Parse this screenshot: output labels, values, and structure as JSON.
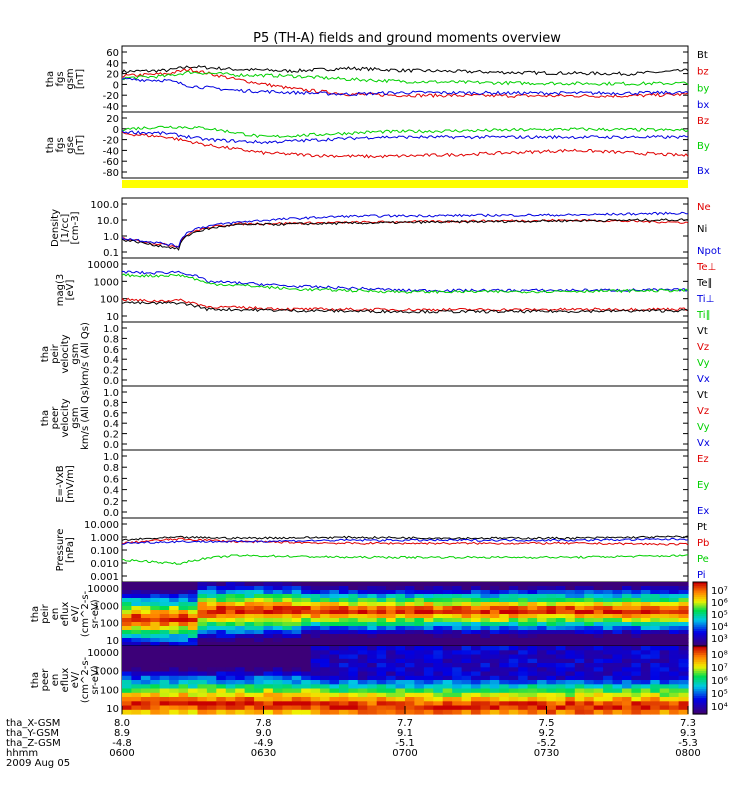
{
  "title": "P5 (TH-A) fields and ground moments overview",
  "colors": {
    "black": "#000000",
    "red": "#e00000",
    "green": "#00d000",
    "blue": "#0000e0",
    "yellow": "#ffff00"
  },
  "chart_data": [
    {
      "type": "line",
      "panel": "fgs_gsm",
      "ylabel": [
        "tha",
        "fgs",
        "gsm",
        "[nT]"
      ],
      "yticks": [
        "60",
        "40",
        "20",
        "0",
        "-20",
        "-40"
      ],
      "ylim": [
        -40,
        65
      ],
      "legend": [
        {
          "label": "Bt",
          "color": "black"
        },
        {
          "label": "bz",
          "color": "red"
        },
        {
          "label": "by",
          "color": "green"
        },
        {
          "label": "bx",
          "color": "blue"
        }
      ],
      "series": [
        {
          "name": "Bt",
          "color": "black",
          "x": [
            0,
            0.08,
            0.12,
            0.2,
            0.3,
            0.4,
            0.5,
            0.7,
            0.9,
            1.0
          ],
          "y": [
            26,
            28,
            35,
            30,
            27,
            32,
            28,
            24,
            22,
            28
          ]
        },
        {
          "name": "bz",
          "color": "red",
          "x": [
            0,
            0.08,
            0.12,
            0.2,
            0.3,
            0.4,
            0.5,
            0.7,
            0.9,
            1.0
          ],
          "y": [
            18,
            22,
            30,
            12,
            -5,
            -15,
            -17,
            -18,
            -18,
            -15
          ]
        },
        {
          "name": "by",
          "color": "green",
          "x": [
            0,
            0.08,
            0.12,
            0.2,
            0.3,
            0.4,
            0.5,
            0.7,
            0.9,
            1.0
          ],
          "y": [
            14,
            18,
            25,
            20,
            18,
            12,
            8,
            5,
            4,
            5
          ]
        },
        {
          "name": "bx",
          "color": "blue",
          "x": [
            0,
            0.08,
            0.12,
            0.2,
            0.3,
            0.4,
            0.5,
            0.7,
            0.9,
            1.0
          ],
          "y": [
            12,
            10,
            0,
            -8,
            -12,
            -15,
            -12,
            -13,
            -13,
            -12
          ]
        }
      ]
    },
    {
      "type": "line",
      "panel": "fgs_gse",
      "ylabel": [
        "tha",
        "fgs",
        "gse",
        "[nT]"
      ],
      "yticks": [
        "20",
        "0",
        "-20",
        "-40",
        "-60",
        "-80"
      ],
      "ylim": [
        -85,
        25
      ],
      "legend": [
        {
          "label": "Bz",
          "color": "red"
        },
        {
          "label": "By",
          "color": "green"
        },
        {
          "label": "Bx",
          "color": "blue"
        }
      ],
      "series": [
        {
          "name": "Bz",
          "color": "red",
          "x": [
            0,
            0.08,
            0.15,
            0.25,
            0.35,
            0.45,
            0.6,
            0.8,
            1.0
          ],
          "y": [
            -8,
            -15,
            -30,
            -45,
            -50,
            -52,
            -48,
            -40,
            -50
          ]
        },
        {
          "name": "By",
          "color": "green",
          "x": [
            0,
            0.08,
            0.15,
            0.25,
            0.35,
            0.45,
            0.6,
            0.8,
            1.0
          ],
          "y": [
            0,
            5,
            2,
            -15,
            -10,
            -5,
            -3,
            0,
            -2
          ]
        },
        {
          "name": "Bx",
          "color": "blue",
          "x": [
            0,
            0.08,
            0.15,
            0.25,
            0.35,
            0.45,
            0.6,
            0.8,
            1.0
          ],
          "y": [
            -5,
            -8,
            -20,
            -25,
            -20,
            -15,
            -15,
            -15,
            -15
          ]
        }
      ]
    },
    {
      "type": "line",
      "panel": "density",
      "ylabel": [
        "Density",
        "[1/cc]",
        "[cm-3]"
      ],
      "yticks": [
        "100.0",
        "10.0",
        "1.0",
        "0.1"
      ],
      "ylog": true,
      "ylim": [
        0.1,
        200
      ],
      "legend": [
        {
          "label": "Ne",
          "color": "red"
        },
        {
          "label": "Ni",
          "color": "black"
        },
        {
          "label": "Npot",
          "color": "blue"
        }
      ],
      "series": [
        {
          "name": "Ne",
          "color": "red",
          "x": [
            0,
            0.05,
            0.1,
            0.13,
            0.2,
            0.4,
            0.6,
            0.8,
            1.0
          ],
          "y": [
            1.0,
            0.5,
            0.3,
            3,
            8,
            10,
            12,
            14,
            10
          ]
        },
        {
          "name": "Ni",
          "color": "black",
          "x": [
            0,
            0.05,
            0.1,
            0.13,
            0.2,
            0.4,
            0.6,
            0.8,
            1.0
          ],
          "y": [
            0.8,
            0.4,
            0.2,
            2.5,
            7,
            9,
            11,
            13,
            15
          ]
        },
        {
          "name": "Npot",
          "color": "blue",
          "x": [
            0,
            0.05,
            0.1,
            0.13,
            0.2,
            0.4,
            0.6,
            0.8,
            1.0
          ],
          "y": [
            1.0,
            0.6,
            0.3,
            4,
            10,
            25,
            28,
            30,
            40
          ]
        }
      ]
    },
    {
      "type": "line",
      "panel": "temperature",
      "ylabel": [
        "mag(3",
        "[eV]"
      ],
      "yticks": [
        "10000",
        "1000",
        "100",
        "10"
      ],
      "ylog": true,
      "ylim": [
        10,
        10000
      ],
      "legend": [
        {
          "label": "Te⊥",
          "color": "red"
        },
        {
          "label": "Te∥",
          "color": "black"
        },
        {
          "label": "Ti⊥",
          "color": "blue"
        },
        {
          "label": "Ti∥",
          "color": "green"
        }
      ],
      "series": [
        {
          "name": "Te⊥",
          "color": "red",
          "x": [
            0,
            0.05,
            0.1,
            0.15,
            0.3,
            0.5,
            0.7,
            1.0
          ],
          "y": [
            100,
            80,
            90,
            40,
            30,
            28,
            28,
            30
          ]
        },
        {
          "name": "Te∥",
          "color": "black",
          "x": [
            0,
            0.05,
            0.1,
            0.15,
            0.3,
            0.5,
            0.7,
            1.0
          ],
          "y": [
            70,
            60,
            65,
            30,
            25,
            22,
            22,
            25
          ]
        },
        {
          "name": "Ti⊥",
          "color": "blue",
          "x": [
            0,
            0.05,
            0.1,
            0.15,
            0.3,
            0.5,
            0.7,
            1.0
          ],
          "y": [
            3000,
            2500,
            3000,
            900,
            500,
            300,
            300,
            320
          ]
        },
        {
          "name": "Ti∥",
          "color": "green",
          "x": [
            0,
            0.05,
            0.1,
            0.15,
            0.3,
            0.5,
            0.7,
            1.0
          ],
          "y": [
            2000,
            1800,
            2000,
            700,
            350,
            250,
            260,
            300
          ]
        }
      ]
    },
    {
      "type": "line",
      "panel": "peir_velocity",
      "ylabel": [
        "tha",
        "peir",
        "velocity",
        "gsm",
        "km/s (All Qs)"
      ],
      "yticks": [
        "1.0",
        "0.8",
        "0.6",
        "0.4",
        "0.2",
        "0.0"
      ],
      "ylim": [
        0,
        1
      ],
      "legend": [
        {
          "label": "Vt",
          "color": "black"
        },
        {
          "label": "Vz",
          "color": "red"
        },
        {
          "label": "Vy",
          "color": "green"
        },
        {
          "label": "Vx",
          "color": "blue"
        }
      ],
      "series": []
    },
    {
      "type": "line",
      "panel": "peer_velocity",
      "ylabel": [
        "tha",
        "peer",
        "velocity",
        "gsm",
        "km/s (All Qs)"
      ],
      "yticks": [
        "1.0",
        "0.8",
        "0.6",
        "0.4",
        "0.2",
        "0.0"
      ],
      "ylim": [
        0,
        1
      ],
      "legend": [
        {
          "label": "Vt",
          "color": "black"
        },
        {
          "label": "Vz",
          "color": "red"
        },
        {
          "label": "Vy",
          "color": "green"
        },
        {
          "label": "Vx",
          "color": "blue"
        }
      ],
      "series": []
    },
    {
      "type": "line",
      "panel": "efield",
      "ylabel": [
        "E=-VxB",
        "[mV/m]"
      ],
      "yticks": [
        "1.0",
        "0.8",
        "0.6",
        "0.4",
        "0.2",
        "0.0"
      ],
      "ylim": [
        0,
        1
      ],
      "legend": [
        {
          "label": "Ez",
          "color": "red"
        },
        {
          "label": "Ey",
          "color": "green"
        },
        {
          "label": "Ex",
          "color": "blue"
        }
      ],
      "series": []
    },
    {
      "type": "line",
      "panel": "pressure",
      "ylabel": [
        "Pressure",
        "[nPa]"
      ],
      "yticks": [
        "10.000",
        "1.000",
        "0.100",
        "0.010",
        "0.001"
      ],
      "ylog": true,
      "ylim": [
        0.001,
        10
      ],
      "legend": [
        {
          "label": "Pt",
          "color": "black"
        },
        {
          "label": "Pb",
          "color": "red"
        },
        {
          "label": "Pe",
          "color": "green"
        },
        {
          "label": "Pi",
          "color": "blue"
        }
      ],
      "series": [
        {
          "name": "Pt",
          "color": "black",
          "x": [
            0,
            0.1,
            0.2,
            0.4,
            0.6,
            0.8,
            1.0
          ],
          "y": [
            0.5,
            0.8,
            0.7,
            0.8,
            0.7,
            0.7,
            0.9
          ]
        },
        {
          "name": "Pb",
          "color": "red",
          "x": [
            0,
            0.1,
            0.2,
            0.4,
            0.6,
            0.8,
            1.0
          ],
          "y": [
            0.3,
            0.6,
            0.4,
            0.3,
            0.3,
            0.3,
            0.25
          ]
        },
        {
          "name": "Pe",
          "color": "green",
          "x": [
            0,
            0.1,
            0.2,
            0.4,
            0.6,
            0.8,
            1.0
          ],
          "y": [
            0.02,
            0.01,
            0.04,
            0.03,
            0.03,
            0.03,
            0.04
          ]
        },
        {
          "name": "Pi",
          "color": "blue",
          "x": [
            0,
            0.1,
            0.2,
            0.4,
            0.6,
            0.8,
            1.0
          ],
          "y": [
            0.3,
            0.4,
            0.4,
            0.5,
            0.5,
            0.5,
            0.6
          ]
        }
      ]
    },
    {
      "type": "heatmap",
      "panel": "peir_eflux",
      "ylabel": [
        "tha",
        "peir",
        "en",
        "eflux",
        "eV/",
        "(cm^2-s-",
        "sr-eV)"
      ],
      "yticks": [
        "10000",
        "1000",
        "100",
        "10"
      ],
      "colorbar_ticks": [
        "10⁷",
        "10⁶",
        "10⁵",
        "10⁴",
        "10³"
      ]
    },
    {
      "type": "heatmap",
      "panel": "peer_eflux",
      "ylabel": [
        "tha",
        "peer",
        "en",
        "eflux",
        "eV/",
        "(cm^2-s-",
        "sr-eV)"
      ],
      "yticks": [
        "10000",
        "1000",
        "100",
        "10"
      ],
      "colorbar_ticks": [
        "10⁸",
        "10⁷",
        "10⁶",
        "10⁵",
        "10⁴"
      ]
    }
  ],
  "xaxis": {
    "tick_labels": [
      "0600",
      "0630",
      "0700",
      "0730",
      "0800"
    ],
    "rows": [
      {
        "label": "tha_X-GSM",
        "values": [
          "8.0",
          "7.8",
          "7.7",
          "7.5",
          "7.3"
        ]
      },
      {
        "label": "tha_Y-GSM",
        "values": [
          "8.9",
          "9.0",
          "9.1",
          "9.2",
          "9.3"
        ]
      },
      {
        "label": "tha_Z-GSM",
        "values": [
          "-4.8",
          "-4.9",
          "-5.1",
          "-5.2",
          "-5.3"
        ]
      },
      {
        "label": "hhmm",
        "values": [
          "0600",
          "0630",
          "0700",
          "0730",
          "0800"
        ]
      }
    ],
    "date": "2009 Aug 05"
  }
}
